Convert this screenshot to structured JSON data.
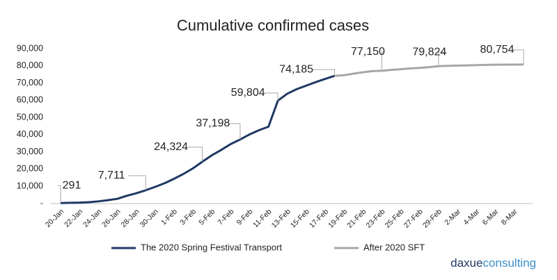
{
  "chart_data": {
    "type": "line",
    "title": "Cumulative confirmed cases",
    "categories": [
      "20-Jan",
      null,
      "22-Jan",
      null,
      "24-Jan",
      null,
      "26-Jan",
      null,
      "28-Jan",
      null,
      "30-Jan",
      null,
      "1-Feb",
      null,
      "3-Feb",
      null,
      "5-Feb",
      null,
      "7-Feb",
      null,
      "9-Feb",
      null,
      "11-Feb",
      null,
      "13-Feb",
      null,
      "15-Feb",
      null,
      "17-Feb",
      null,
      "19-Feb",
      null,
      "21-Feb",
      null,
      "23-Feb",
      null,
      "25-Feb",
      null,
      "27-Feb",
      null,
      "29-Feb",
      null,
      "2-Mar",
      null,
      "4-Mar",
      null,
      "6-Mar",
      null,
      "8-Mar",
      null
    ],
    "series": [
      {
        "name": "The 2020 Spring Festival Transport",
        "color": "#1f3864",
        "values": [
          291,
          440,
          571,
          830,
          1287,
          1975,
          2744,
          4515,
          5974,
          7711,
          9692,
          11791,
          14380,
          17205,
          20438,
          24324,
          28018,
          31161,
          34546,
          37198,
          40171,
          42638,
          44653,
          59804,
          63851,
          66492,
          68500,
          70548,
          72436,
          74185,
          null,
          null,
          null,
          null,
          null,
          null,
          null,
          null,
          null,
          null,
          null,
          null,
          null,
          null,
          null,
          null,
          null,
          null,
          null,
          null
        ],
        "value_labels": [
          "291",
          null,
          null,
          null,
          null,
          null,
          null,
          null,
          null,
          "7,711",
          null,
          null,
          null,
          null,
          null,
          "24,324",
          null,
          null,
          null,
          "37,198",
          null,
          null,
          null,
          "59,804",
          null,
          null,
          null,
          null,
          null,
          "74,185",
          null,
          null,
          null,
          null,
          null,
          null,
          null,
          null,
          null,
          null,
          null,
          null,
          null,
          null,
          null,
          null,
          null,
          null,
          null,
          null
        ]
      },
      {
        "name": "After 2020 SFT",
        "color": "#a6a6a6",
        "values": [
          null,
          null,
          null,
          null,
          null,
          null,
          null,
          null,
          null,
          null,
          null,
          null,
          null,
          null,
          null,
          null,
          null,
          null,
          null,
          null,
          null,
          null,
          null,
          null,
          null,
          null,
          null,
          null,
          null,
          74185,
          74576,
          75465,
          76288,
          76936,
          77150,
          77658,
          78064,
          78497,
          78824,
          79251,
          79824,
          80026,
          80151,
          80270,
          80409,
          80552,
          80651,
          80695,
          80735,
          80754
        ],
        "value_labels": [
          null,
          null,
          null,
          null,
          null,
          null,
          null,
          null,
          null,
          null,
          null,
          null,
          null,
          null,
          null,
          null,
          null,
          null,
          null,
          null,
          null,
          null,
          null,
          null,
          null,
          null,
          null,
          null,
          null,
          null,
          null,
          null,
          null,
          null,
          "77,150",
          null,
          null,
          null,
          null,
          null,
          "79,824",
          null,
          null,
          null,
          null,
          null,
          null,
          null,
          null,
          "80,754"
        ]
      }
    ],
    "ylim": [
      0,
      90000
    ],
    "yticks": [
      {
        "value": 0,
        "label": "-"
      },
      {
        "value": 10000,
        "label": "10,000"
      },
      {
        "value": 20000,
        "label": "20,000"
      },
      {
        "value": 30000,
        "label": "30,000"
      },
      {
        "value": 40000,
        "label": "40,000"
      },
      {
        "value": 50000,
        "label": "50,000"
      },
      {
        "value": 60000,
        "label": "60,000"
      },
      {
        "value": 70000,
        "label": "70,000"
      },
      {
        "value": 80000,
        "label": "80,000"
      },
      {
        "value": 90000,
        "label": "90,000"
      }
    ],
    "grid": false,
    "legend": "bottom",
    "logo_part1": "daxue",
    "logo_part2": "consulting"
  }
}
